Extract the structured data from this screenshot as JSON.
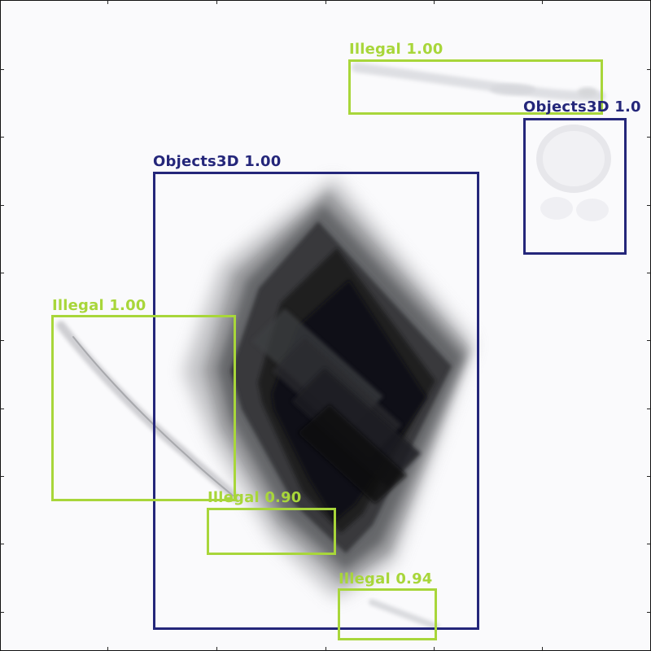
{
  "colors": {
    "illegal": "#a8d63a",
    "objects3d": "#24267a",
    "background": "#fafafc"
  },
  "detections": [
    {
      "id": "illegal-top",
      "label": "Illegal 1.00",
      "class": "illegal"
    },
    {
      "id": "objects3d-top-right",
      "label": "Objects3D 1.0",
      "class": "objects3d"
    },
    {
      "id": "objects3d-main",
      "label": "Objects3D 1.00",
      "class": "objects3d"
    },
    {
      "id": "illegal-left",
      "label": "Illegal 1.00",
      "class": "illegal"
    },
    {
      "id": "illegal-lower-middle",
      "label": "Illegal 0.90",
      "class": "illegal"
    },
    {
      "id": "illegal-bottom",
      "label": "Illegal 0.94",
      "class": "illegal"
    }
  ]
}
